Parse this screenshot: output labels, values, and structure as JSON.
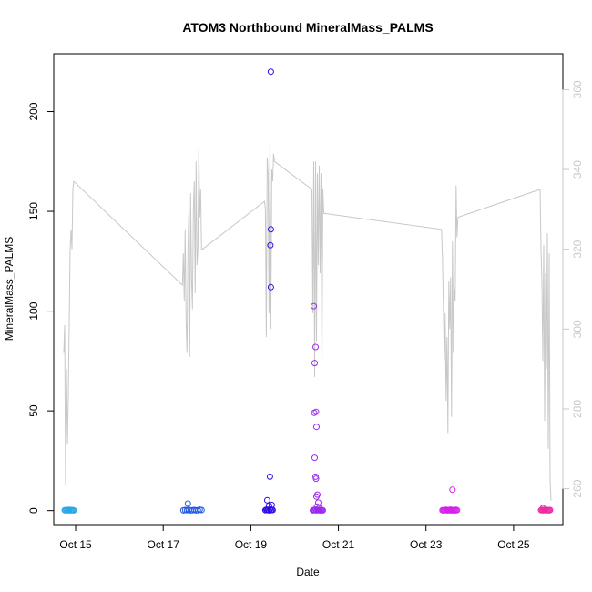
{
  "chart_data": {
    "type": "scatter",
    "title": "ATOM3 Northbound MineralMass_PALMS",
    "xlabel": "Date",
    "ylabel": "MineralMass_PALMS",
    "xlim": [
      "2017-10-14T12:00",
      "2017-10-26T03:00"
    ],
    "ylim": [
      -7,
      229
    ],
    "y2lim": [
      251,
      369
    ],
    "x_ticks": [
      {
        "date": "2017-10-15T00:00",
        "label": "Oct 15"
      },
      {
        "date": "2017-10-17T00:00",
        "label": "Oct 17"
      },
      {
        "date": "2017-10-19T00:00",
        "label": "Oct 19"
      },
      {
        "date": "2017-10-21T00:00",
        "label": "Oct 21"
      },
      {
        "date": "2017-10-23T00:00",
        "label": "Oct 23"
      },
      {
        "date": "2017-10-25T00:00",
        "label": "Oct 25"
      }
    ],
    "y_ticks": [
      "0",
      "50",
      "100",
      "150",
      "200"
    ],
    "y2_ticks": [
      "260",
      "280",
      "300",
      "320",
      "340",
      "360"
    ],
    "grid": false,
    "legend": "none",
    "colors": {
      "axis": "#000000",
      "secondary_axis": "#c8c8c8",
      "line": "#c8c8c8"
    },
    "scatter_groups": [
      {
        "color": "#29a7e9",
        "x": [
          "2017-10-14T18:00",
          "2017-10-14T18:30",
          "2017-10-14T19:00",
          "2017-10-14T19:30",
          "2017-10-14T20:00",
          "2017-10-14T20:30",
          "2017-10-14T21:00",
          "2017-10-14T21:30",
          "2017-10-14T22:00",
          "2017-10-14T22:30",
          "2017-10-14T23:00"
        ],
        "y": [
          0.2,
          0.1,
          0.3,
          0.2,
          0.1,
          0.4,
          0.2,
          0.1,
          0.3,
          0.2,
          0.1
        ]
      },
      {
        "color": "#1f57e6",
        "x": [
          "2017-10-17T11:00",
          "2017-10-17T12:00",
          "2017-10-17T13:00",
          "2017-10-17T14:00",
          "2017-10-17T15:00",
          "2017-10-17T16:00",
          "2017-10-17T17:00",
          "2017-10-17T18:00",
          "2017-10-17T19:00",
          "2017-10-17T20:00",
          "2017-10-17T21:00",
          "2017-10-17T13:30"
        ],
        "y": [
          0.1,
          0.3,
          0.2,
          0.4,
          0.1,
          0.2,
          0.3,
          0.1,
          0.2,
          0.5,
          0.3,
          3.5
        ]
      },
      {
        "color": "#2d0ce6",
        "x": [
          "2017-10-19T08:00",
          "2017-10-19T08:30",
          "2017-10-19T09:00",
          "2017-10-19T09:30",
          "2017-10-19T10:00",
          "2017-10-19T10:30",
          "2017-10-19T11:00",
          "2017-10-19T11:30",
          "2017-10-19T12:00",
          "2017-10-19T09:00",
          "2017-10-19T10:00",
          "2017-10-19T11:00",
          "2017-10-19T11:00",
          "2017-10-19T10:45",
          "2017-10-19T11:00",
          "2017-10-19T10:30",
          "2017-10-19T11:30"
        ],
        "y": [
          0.2,
          0.5,
          0.3,
          0.4,
          0.1,
          0.6,
          0.2,
          0.4,
          0.3,
          5.2,
          2.5,
          220,
          141,
          133,
          112,
          17,
          2.8
        ]
      },
      {
        "color": "#9b2aee",
        "x": [
          "2017-10-20T10:00",
          "2017-10-20T10:30",
          "2017-10-20T11:00",
          "2017-10-20T11:30",
          "2017-10-20T12:00",
          "2017-10-20T12:30",
          "2017-10-20T13:00",
          "2017-10-20T13:30",
          "2017-10-20T14:00",
          "2017-10-20T14:30",
          "2017-10-20T15:00",
          "2017-10-20T15:30",
          "2017-10-20T10:30",
          "2017-10-20T11:30",
          "2017-10-20T11:00",
          "2017-10-20T10:45",
          "2017-10-20T11:45",
          "2017-10-20T12:00",
          "2017-10-20T11:00",
          "2017-10-20T11:30",
          "2017-10-20T11:45",
          "2017-10-20T12:30",
          "2017-10-20T12:00",
          "2017-10-20T13:00",
          "2017-10-20T12:15",
          "2017-10-20T13:30"
        ],
        "y": [
          0.1,
          0.3,
          0.2,
          0.5,
          0.1,
          0.4,
          0.2,
          0.3,
          0.1,
          0.2,
          0.3,
          0.1,
          102.5,
          82,
          74,
          49,
          49.5,
          42,
          26.5,
          17,
          16,
          8,
          7,
          4,
          2,
          1.2
        ]
      },
      {
        "color": "#d61fe8",
        "x": [
          "2017-10-23T09:00",
          "2017-10-23T09:30",
          "2017-10-23T10:00",
          "2017-10-23T10:30",
          "2017-10-23T11:00",
          "2017-10-23T11:30",
          "2017-10-23T12:00",
          "2017-10-23T12:30",
          "2017-10-23T13:00",
          "2017-10-23T13:30",
          "2017-10-23T14:00",
          "2017-10-23T14:30",
          "2017-10-23T15:00",
          "2017-10-23T15:30",
          "2017-10-23T16:00",
          "2017-10-23T16:30",
          "2017-10-23T17:00",
          "2017-10-23T14:30"
        ],
        "y": [
          0.2,
          0.1,
          0.3,
          0.2,
          0.4,
          0.1,
          0.2,
          0.3,
          0.1,
          0.5,
          0.2,
          0.1,
          0.3,
          0.2,
          0.1,
          0.4,
          0.2,
          10.5
        ]
      },
      {
        "color": "#ee2aa6",
        "x": [
          "2017-10-25T15:00",
          "2017-10-25T15:30",
          "2017-10-25T16:00",
          "2017-10-25T16:30",
          "2017-10-25T17:00",
          "2017-10-25T17:30",
          "2017-10-25T18:00",
          "2017-10-25T18:30",
          "2017-10-25T19:00",
          "2017-10-25T19:30",
          "2017-10-25T20:00",
          "2017-10-25T16:00"
        ],
        "y": [
          0.2,
          0.4,
          0.1,
          0.3,
          0.2,
          0.5,
          0.1,
          0.3,
          0.2,
          0.1,
          0.3,
          1.2
        ]
      }
    ],
    "line_series": {
      "axis": "secondary",
      "x": [
        "2017-10-14T17:30",
        "2017-10-14T18:00",
        "2017-10-14T18:30",
        "2017-10-14T19:00",
        "2017-10-14T19:30",
        "2017-10-14T20:00",
        "2017-10-14T20:30",
        "2017-10-14T21:00",
        "2017-10-14T21:30",
        "2017-10-14T22:00",
        "2017-10-14T22:30",
        "2017-10-14T23:00",
        "2017-10-17T10:30",
        "2017-10-17T11:00",
        "2017-10-17T11:30",
        "2017-10-17T12:00",
        "2017-10-17T12:30",
        "2017-10-17T13:00",
        "2017-10-17T13:30",
        "2017-10-17T14:00",
        "2017-10-17T14:30",
        "2017-10-17T15:00",
        "2017-10-17T15:30",
        "2017-10-17T16:00",
        "2017-10-17T16:30",
        "2017-10-17T17:00",
        "2017-10-17T17:30",
        "2017-10-17T18:00",
        "2017-10-17T18:30",
        "2017-10-17T19:00",
        "2017-10-17T19:30",
        "2017-10-17T20:00",
        "2017-10-17T20:30",
        "2017-10-17T21:00",
        "2017-10-17T21:30",
        "2017-10-19T07:30",
        "2017-10-19T08:00",
        "2017-10-19T08:30",
        "2017-10-19T09:00",
        "2017-10-19T09:30",
        "2017-10-19T10:00",
        "2017-10-19T10:30",
        "2017-10-19T11:00",
        "2017-10-19T11:30",
        "2017-10-19T12:00",
        "2017-10-19T12:30",
        "2017-10-19T13:00",
        "2017-10-20T09:30",
        "2017-10-20T10:00",
        "2017-10-20T10:30",
        "2017-10-20T11:00",
        "2017-10-20T11:30",
        "2017-10-20T12:00",
        "2017-10-20T12:30",
        "2017-10-20T13:00",
        "2017-10-20T13:30",
        "2017-10-20T14:00",
        "2017-10-20T14:30",
        "2017-10-20T15:00",
        "2017-10-20T15:30",
        "2017-10-20T16:00",
        "2017-10-23T08:30",
        "2017-10-23T09:00",
        "2017-10-23T09:30",
        "2017-10-23T10:00",
        "2017-10-23T10:30",
        "2017-10-23T11:00",
        "2017-10-23T11:30",
        "2017-10-23T12:00",
        "2017-10-23T12:30",
        "2017-10-23T13:00",
        "2017-10-23T13:30",
        "2017-10-23T14:00",
        "2017-10-23T14:30",
        "2017-10-23T15:00",
        "2017-10-23T15:30",
        "2017-10-23T16:00",
        "2017-10-23T16:30",
        "2017-10-23T17:00",
        "2017-10-23T17:30",
        "2017-10-25T14:30",
        "2017-10-25T15:00",
        "2017-10-25T15:30",
        "2017-10-25T16:00",
        "2017-10-25T16:30",
        "2017-10-25T17:00",
        "2017-10-25T17:30",
        "2017-10-25T18:00",
        "2017-10-25T18:30",
        "2017-10-25T19:00",
        "2017-10-25T19:30",
        "2017-10-25T20:00",
        "2017-10-25T20:30"
      ],
      "y": [
        294,
        301,
        261,
        290,
        271,
        283,
        302,
        320,
        325,
        320,
        335,
        337,
        311,
        319,
        307,
        325,
        302,
        294,
        319,
        329,
        293,
        334,
        313,
        305,
        330,
        337,
        309,
        342,
        316,
        320,
        345,
        328,
        335,
        320,
        320,
        332,
        330,
        298,
        343,
        339,
        304,
        347,
        300,
        340,
        337,
        344,
        342,
        335,
        304,
        342,
        288,
        342,
        297,
        339,
        316,
        341,
        314,
        339,
        291,
        335,
        329,
        325,
        318,
        306,
        292,
        304,
        282,
        298,
        274,
        312,
        300,
        313,
        278,
        322,
        294,
        310,
        307,
        336,
        323,
        328,
        335,
        320,
        312,
        292,
        321,
        277,
        314,
        290,
        324,
        270,
        319,
        262,
        257
      ]
    }
  }
}
